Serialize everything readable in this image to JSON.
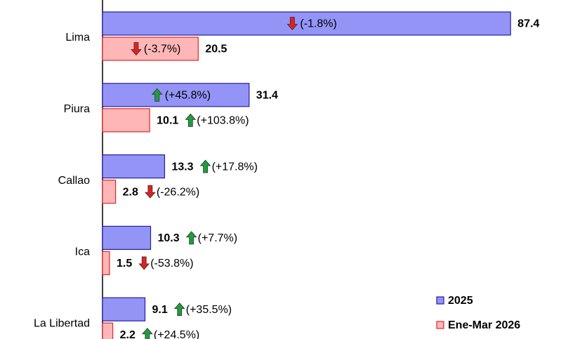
{
  "chart_data": {
    "type": "hbar",
    "categories": [
      "Lima",
      "Piura",
      "Callao",
      "Ica",
      "La Libertad"
    ],
    "xlim": [
      0,
      98.2
    ],
    "legend": "bottom-right",
    "series": [
      {
        "name": "2025",
        "color": "#9494f7",
        "edge": "#2020a0",
        "values": [
          87.4,
          31.4,
          13.3,
          10.3,
          9.1
        ],
        "changes": [
          -1.8,
          45.8,
          17.8,
          7.7,
          35.5
        ],
        "change_labels": [
          "(-1.8%)",
          "(+45.8%)",
          "(+17.8%)",
          "(+7.7%)",
          "(+35.5%)"
        ]
      },
      {
        "name": "Ene-Mar 2026",
        "color": "#ffb6b6",
        "edge": "#e02828",
        "values": [
          20.5,
          10.1,
          2.8,
          1.5,
          2.2
        ],
        "changes": [
          -3.7,
          103.8,
          -26.2,
          -53.8,
          24.5
        ],
        "change_labels": [
          "(-3.7%)",
          "(+103.8%)",
          "(-26.2%)",
          "(-53.8%)",
          "(+24.5%)"
        ]
      }
    ]
  }
}
